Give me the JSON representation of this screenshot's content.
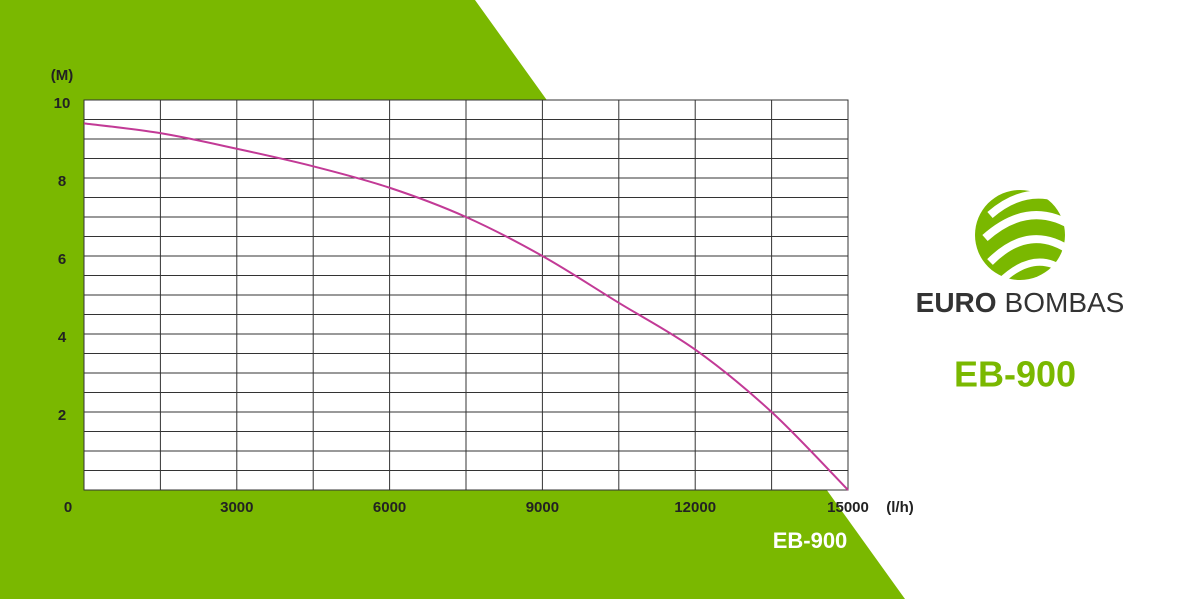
{
  "chart_data": {
    "type": "line",
    "y_label": "(M)",
    "x_label": "(l/h)",
    "caption": "EB-900",
    "x": [
      0,
      1500,
      3000,
      4500,
      6000,
      7500,
      9000,
      10500,
      12000,
      13500,
      15000
    ],
    "series": [
      {
        "name": "EB-900",
        "color": "#c23a96",
        "values": [
          9.4,
          9.15,
          8.75,
          8.3,
          7.75,
          7.0,
          6.0,
          4.8,
          3.6,
          2.0,
          0
        ]
      }
    ],
    "xlim": [
      0,
      15000
    ],
    "xticks": [
      0,
      3000,
      6000,
      9000,
      12000,
      15000
    ],
    "ylim": [
      0,
      10
    ],
    "yticks": [
      2,
      4,
      6,
      8,
      10
    ],
    "grid": true
  },
  "logo": {
    "brand_bold": "EURO",
    "brand_light": "BOMBAS",
    "model": "EB-900"
  }
}
